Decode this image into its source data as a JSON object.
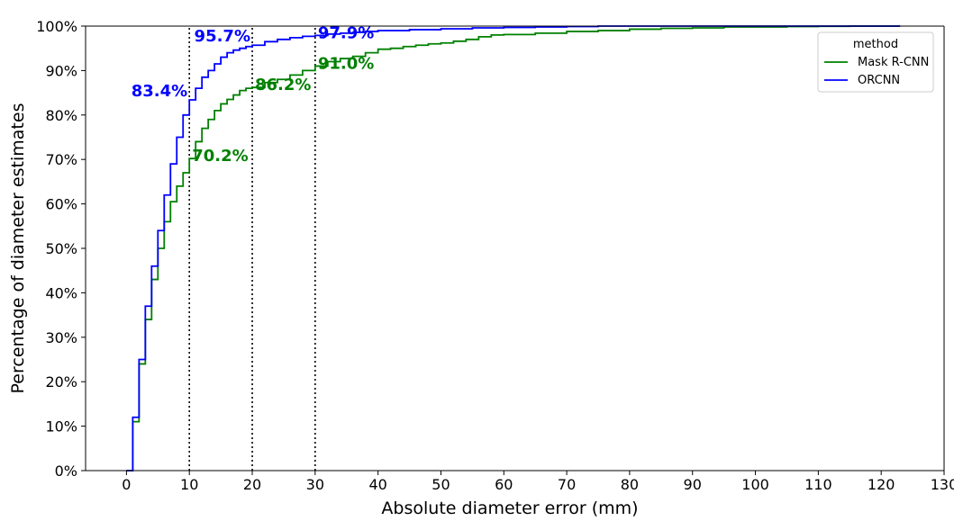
{
  "chart_data": {
    "type": "line",
    "title": "",
    "xlabel": "Absolute diameter error (mm)",
    "ylabel": "Percentage of diameter estimates",
    "xlim": [
      -6.5,
      130
    ],
    "ylim": [
      0,
      100
    ],
    "x_ticks": [
      0,
      10,
      20,
      30,
      40,
      50,
      60,
      70,
      80,
      90,
      100,
      110,
      120,
      130
    ],
    "y_ticks": [
      0,
      10,
      20,
      30,
      40,
      50,
      60,
      70,
      80,
      90,
      100
    ],
    "y_tick_suffix": "%",
    "grid": false,
    "legend": {
      "title": "method",
      "placement": "top-right"
    },
    "series": [
      {
        "name": "Mask R-CNN",
        "color": "#008000",
        "x": [
          0,
          1,
          2,
          3,
          4,
          5,
          6,
          7,
          8,
          9,
          10,
          11,
          12,
          13,
          14,
          15,
          16,
          17,
          18,
          19,
          20,
          22,
          24,
          26,
          28,
          30,
          32,
          34,
          36,
          38,
          40,
          42,
          44,
          46,
          48,
          50,
          52,
          54,
          56,
          58,
          60,
          65,
          70,
          75,
          80,
          85,
          90,
          95,
          100,
          105,
          110,
          115,
          123
        ],
        "y": [
          0,
          11,
          24,
          34,
          43,
          50,
          56,
          60.5,
          64,
          67,
          70.2,
          74,
          77,
          79,
          81,
          82.5,
          83.5,
          84.5,
          85.5,
          86,
          86.2,
          87.3,
          88,
          89,
          90,
          91,
          92,
          92.7,
          93.2,
          94,
          94.8,
          95,
          95.4,
          95.7,
          96,
          96.2,
          96.6,
          97,
          97.6,
          98,
          98.1,
          98.4,
          98.8,
          99,
          99.3,
          99.5,
          99.6,
          99.8,
          99.8,
          99.9,
          99.95,
          100,
          100
        ]
      },
      {
        "name": "ORCNN",
        "color": "#0000ff",
        "x": [
          0,
          1,
          2,
          3,
          4,
          5,
          6,
          7,
          8,
          9,
          10,
          11,
          12,
          13,
          14,
          15,
          16,
          17,
          18,
          19,
          20,
          22,
          24,
          26,
          28,
          30,
          32,
          34,
          36,
          38,
          40,
          45,
          50,
          55,
          60,
          65,
          70,
          75,
          123
        ],
        "y": [
          0,
          12,
          25,
          37,
          46,
          54,
          62,
          69,
          75,
          80,
          83.4,
          86,
          88.5,
          90,
          91.5,
          93,
          94,
          94.6,
          95,
          95.4,
          95.7,
          96.5,
          97,
          97.4,
          97.7,
          97.9,
          98.2,
          98.4,
          98.6,
          98.8,
          99,
          99.2,
          99.4,
          99.6,
          99.7,
          99.8,
          99.9,
          100,
          100
        ]
      }
    ],
    "reference_lines_x": [
      10,
      20,
      30
    ],
    "annotations": [
      {
        "text": "83.4%",
        "x": 10,
        "y": 83.4,
        "color": "#0000ff",
        "anchor": "end"
      },
      {
        "text": "95.7%",
        "x": 20,
        "y": 95.7,
        "color": "#0000ff",
        "anchor": "end"
      },
      {
        "text": "97.9%",
        "x": 30,
        "y": 97.9,
        "color": "#0000ff",
        "anchor": "start"
      },
      {
        "text": "70.2%",
        "x": 10,
        "y": 70.2,
        "color": "#008000",
        "anchor": "start"
      },
      {
        "text": "86.2%",
        "x": 20,
        "y": 86.2,
        "color": "#008000",
        "anchor": "start"
      },
      {
        "text": "91.0%",
        "x": 30,
        "y": 91.0,
        "color": "#008000",
        "anchor": "start"
      }
    ]
  }
}
